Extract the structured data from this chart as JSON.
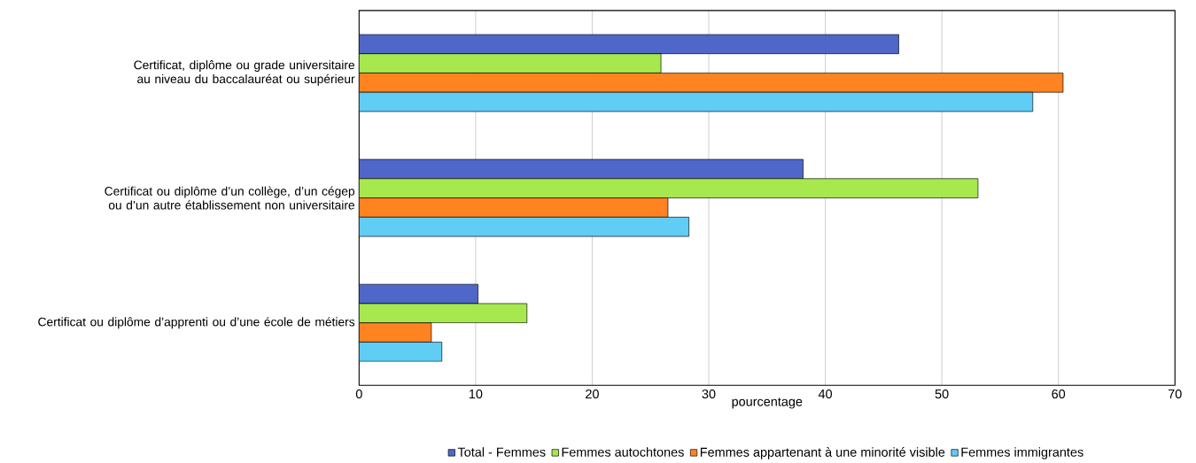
{
  "chart_data": {
    "type": "bar",
    "orientation": "horizontal",
    "xlabel": "pourcentage",
    "categories": [
      "Certificat, diplôme ou grade universitaire au niveau du baccalauréat ou supérieur",
      "Certificat ou diplôme d’un collège, d’un cégep ou d’un autre établissement non universitaire",
      "Certificat ou diplôme d’apprenti ou d’une école de métiers"
    ],
    "series": [
      {
        "name": "Total - Femmes",
        "color": "#4f67c8",
        "values": [
          46.3,
          38.1,
          10.2
        ]
      },
      {
        "name": "Femmes autochtones",
        "color": "#a6e84e",
        "values": [
          25.9,
          53.1,
          14.4
        ]
      },
      {
        "name": "Femmes appartenant à une minorité visible",
        "color": "#ff8320",
        "values": [
          60.4,
          26.5,
          6.2
        ]
      },
      {
        "name": "Femmes immigrantes",
        "color": "#5fcdf4",
        "values": [
          57.8,
          28.3,
          7.1
        ]
      }
    ],
    "xlim": [
      0,
      70
    ],
    "xticks": [
      0,
      10,
      20,
      30,
      40,
      50,
      60,
      70
    ],
    "grid": "x",
    "legend": "bottom"
  }
}
